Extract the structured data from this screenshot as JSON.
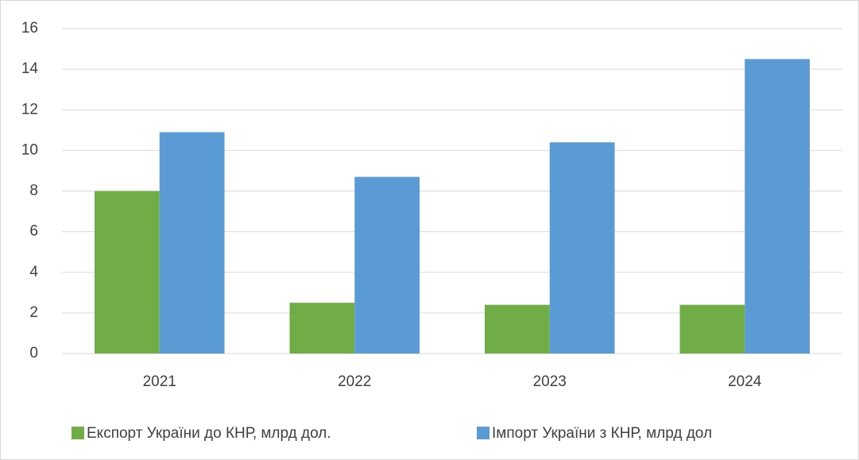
{
  "chart_data": {
    "type": "bar",
    "categories": [
      "2021",
      "2022",
      "2023",
      "2024"
    ],
    "series": [
      {
        "name": "Експорт України до КНР, млрд дол.",
        "color": "#70ad47",
        "values": [
          8.0,
          2.5,
          2.4,
          2.4
        ]
      },
      {
        "name": "Імпорт України з КНР, млрд дол",
        "color": "#5b9bd5",
        "values": [
          10.9,
          8.7,
          10.4,
          14.5
        ]
      }
    ],
    "ylim": [
      0,
      16
    ],
    "yticks": [
      0,
      2,
      4,
      6,
      8,
      10,
      12,
      14,
      16
    ],
    "grid": true,
    "legend": "bottom"
  }
}
